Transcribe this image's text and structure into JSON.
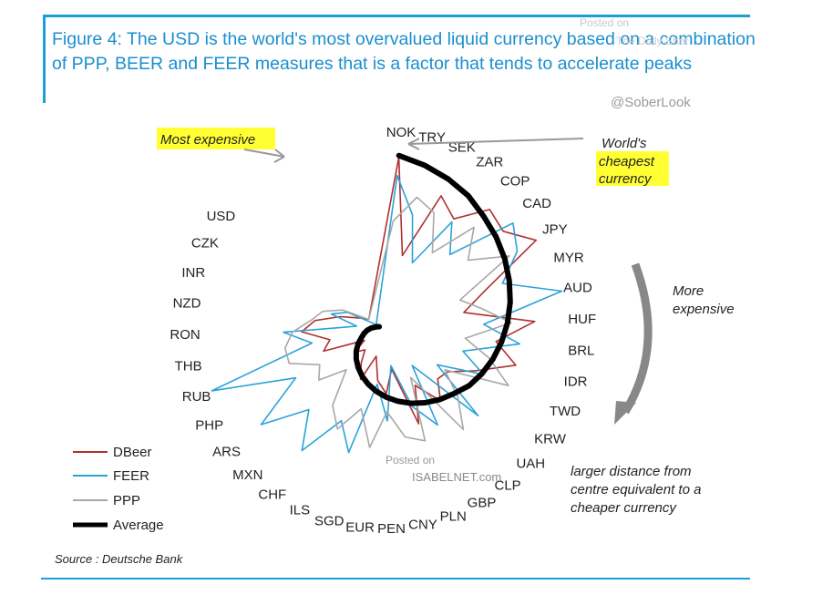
{
  "title": "Figure 4: The USD is the world's most overvalued liquid currency based on a combination of PPP, BEER and FEER measures that is a factor that tends to accelerate peaks",
  "watermarks": {
    "posted_on": "Posted on",
    "dailyshot": "The Daily Shot",
    "soberlook": "@SoberLook",
    "isabelnet": "ISABELNET.com"
  },
  "source": "Source : Deutsche Bank",
  "colors": {
    "accent": "#1a9fd8",
    "dbeer": "#b03030",
    "feer": "#2aa3d9",
    "ppp": "#a8a8a8",
    "average": "#000000",
    "highlight": "#ffff33"
  },
  "annotations": {
    "most_expensive": "Most expensive",
    "worlds_cheapest": [
      "World's",
      "cheapest",
      "currency"
    ],
    "more_expensive": [
      "More",
      "expensive"
    ],
    "larger_distance": [
      "larger distance  from",
      "centre equivalent to a",
      "cheaper currency"
    ]
  },
  "chart_data": {
    "type": "radar",
    "categories": [
      "NOK",
      "TRY",
      "SEK",
      "ZAR",
      "COP",
      "CAD",
      "JPY",
      "MYR",
      "AUD",
      "HUF",
      "BRL",
      "IDR",
      "TWD",
      "KRW",
      "UAH",
      "CLP",
      "GBP",
      "PLN",
      "CNY",
      "PEN",
      "EUR",
      "SGD",
      "ILS",
      "CHF",
      "MXN",
      "ARS",
      "PHP",
      "RUB",
      "THB",
      "RON",
      "NZD",
      "INR",
      "CZK",
      "USD"
    ],
    "series": [
      {
        "name": "DBeer",
        "values": [
          0.95,
          0.42,
          0.8,
          0.72,
          0.88,
          0.85,
          0.97,
          0.6,
          0.45,
          0.83,
          0.62,
          0.75,
          0.55,
          0.42,
          0.4,
          0.5,
          0.35,
          0.55,
          0.22,
          0.35,
          0.28,
          0.15,
          0.3,
          0.22,
          0.15,
          0.2,
          0.12,
          0.35,
          0.3,
          0.45,
          0.38,
          0.25,
          0.15,
          0.1
        ]
      },
      {
        "name": "FEER",
        "values": [
          0.85,
          0.65,
          0.4,
          0.7,
          0.55,
          0.92,
          0.85,
          0.7,
          1.0,
          0.55,
          0.75,
          0.45,
          0.6,
          0.35,
          0.7,
          0.25,
          0.6,
          0.45,
          0.2,
          0.5,
          0.3,
          0.7,
          0.55,
          0.8,
          0.6,
          0.85,
          0.55,
          1.0,
          0.4,
          0.55,
          0.15,
          0.3,
          0.22,
          0.05
        ]
      },
      {
        "name": "PPP",
        "values": [
          0.6,
          0.75,
          0.7,
          0.5,
          0.75,
          0.6,
          0.8,
          0.45,
          0.55,
          0.7,
          0.45,
          0.6,
          0.75,
          0.4,
          0.55,
          0.7,
          0.3,
          0.65,
          0.6,
          0.45,
          0.65,
          0.45,
          0.6,
          0.5,
          0.3,
          0.45,
          0.4,
          0.55,
          0.55,
          0.5,
          0.4,
          0.35,
          0.25,
          0.1
        ]
      },
      {
        "name": "Average",
        "values": [
          0.96,
          0.93,
          0.9,
          0.87,
          0.83,
          0.8,
          0.77,
          0.74,
          0.71,
          0.68,
          0.65,
          0.62,
          0.59,
          0.56,
          0.52,
          0.49,
          0.46,
          0.43,
          0.4,
          0.37,
          0.34,
          0.31,
          0.28,
          0.25,
          0.22,
          0.19,
          0.16,
          0.13,
          0.11,
          0.09,
          0.07,
          0.05,
          0.04,
          0.03
        ]
      }
    ],
    "legend": [
      "DBeer",
      "FEER",
      "PPP",
      "Average"
    ],
    "legend_position": "bottom-left"
  }
}
